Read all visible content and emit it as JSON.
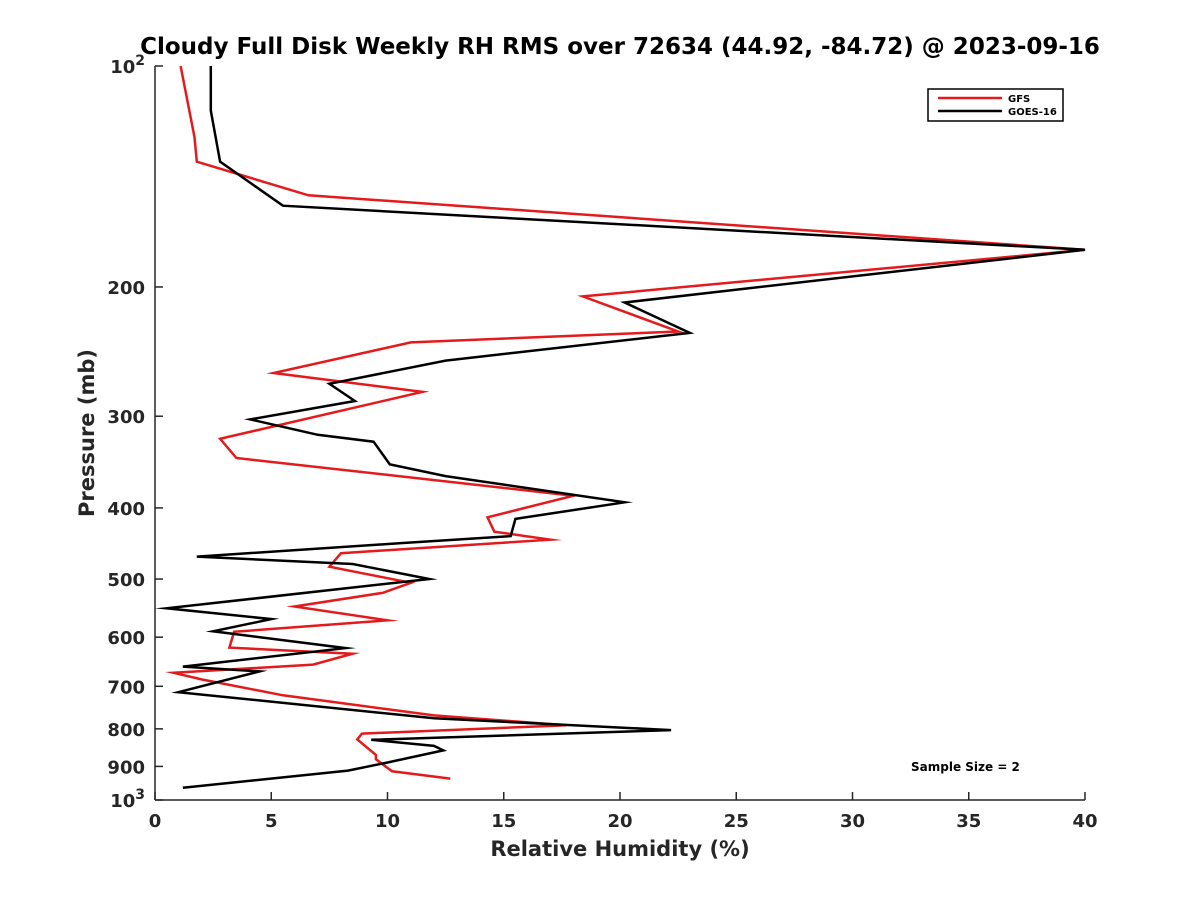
{
  "chart_data": {
    "type": "line",
    "title": "Cloudy Full Disk Weekly RH RMS over 72634 (44.92, -84.72) @ 2023-09-16",
    "xlabel": "Relative Humidity (%)",
    "ylabel": "Pressure (mb)",
    "xlim": [
      0,
      40
    ],
    "ylim": [
      100,
      1000
    ],
    "y_scale": "log",
    "y_reversed": true,
    "x_ticks": [
      "0",
      "5",
      "10",
      "15",
      "20",
      "25",
      "30",
      "35",
      "40"
    ],
    "y_ticks": [
      {
        "value": 100,
        "base": "10",
        "exp": "2"
      },
      {
        "value": 200,
        "label": "200"
      },
      {
        "value": 300,
        "label": "300"
      },
      {
        "value": 400,
        "label": "400"
      },
      {
        "value": 500,
        "label": "500"
      },
      {
        "value": 600,
        "label": "600"
      },
      {
        "value": 700,
        "label": "700"
      },
      {
        "value": 800,
        "label": "800"
      },
      {
        "value": 900,
        "label": "900"
      },
      {
        "value": 1000,
        "base": "10",
        "exp": "3"
      }
    ],
    "legend_position": "top-right",
    "annotation": "Sample Size = 2",
    "series": [
      {
        "name": "GFS",
        "color": "#e41a1c",
        "points": [
          [
            1.1,
            100
          ],
          [
            1.7,
            125
          ],
          [
            1.8,
            135
          ],
          [
            6.6,
            150
          ],
          [
            40.0,
            178
          ],
          [
            18.4,
            206
          ],
          [
            22.5,
            230
          ],
          [
            11.0,
            238
          ],
          [
            5.1,
            262
          ],
          [
            11.5,
            278
          ],
          [
            2.8,
            322
          ],
          [
            3.5,
            342
          ],
          [
            18.0,
            385
          ],
          [
            14.3,
            412
          ],
          [
            14.6,
            431
          ],
          [
            17.0,
            442
          ],
          [
            8.0,
            461
          ],
          [
            7.5,
            481
          ],
          [
            11.0,
            506
          ],
          [
            9.8,
            522
          ],
          [
            6.0,
            545
          ],
          [
            10.0,
            569
          ],
          [
            3.4,
            590
          ],
          [
            3.2,
            620
          ],
          [
            8.5,
            632
          ],
          [
            6.8,
            654
          ],
          [
            0.8,
            671
          ],
          [
            2.0,
            685
          ],
          [
            5.5,
            720
          ],
          [
            12.0,
            767
          ],
          [
            17.7,
            791
          ],
          [
            8.9,
            812
          ],
          [
            8.7,
            827
          ],
          [
            9.5,
            868
          ],
          [
            9.5,
            880
          ],
          [
            10.2,
            914
          ],
          [
            12.7,
            935
          ]
        ]
      },
      {
        "name": "GOES-16",
        "color": "#000000",
        "points": [
          [
            2.4,
            100
          ],
          [
            2.4,
            115
          ],
          [
            2.8,
            135
          ],
          [
            5.5,
            155
          ],
          [
            40.0,
            178
          ],
          [
            20.2,
            210
          ],
          [
            23.0,
            231
          ],
          [
            12.5,
            252
          ],
          [
            7.5,
            271
          ],
          [
            8.6,
            286
          ],
          [
            4.1,
            303
          ],
          [
            7.0,
            318
          ],
          [
            9.4,
            325
          ],
          [
            10.1,
            349
          ],
          [
            12.5,
            362
          ],
          [
            20.2,
            393
          ],
          [
            15.5,
            414
          ],
          [
            15.3,
            437
          ],
          [
            10.5,
            447
          ],
          [
            1.8,
            466
          ],
          [
            8.5,
            477
          ],
          [
            11.8,
            500
          ],
          [
            0.5,
            548
          ],
          [
            5.0,
            567
          ],
          [
            2.5,
            589
          ],
          [
            8.2,
            621
          ],
          [
            1.2,
            658
          ],
          [
            4.5,
            668
          ],
          [
            1.0,
            713
          ],
          [
            12.0,
            774
          ],
          [
            22.2,
            803
          ],
          [
            9.3,
            828
          ],
          [
            12.0,
            844
          ],
          [
            12.4,
            856
          ],
          [
            10.0,
            889
          ],
          [
            8.3,
            912
          ],
          [
            1.2,
            962
          ]
        ]
      }
    ]
  }
}
